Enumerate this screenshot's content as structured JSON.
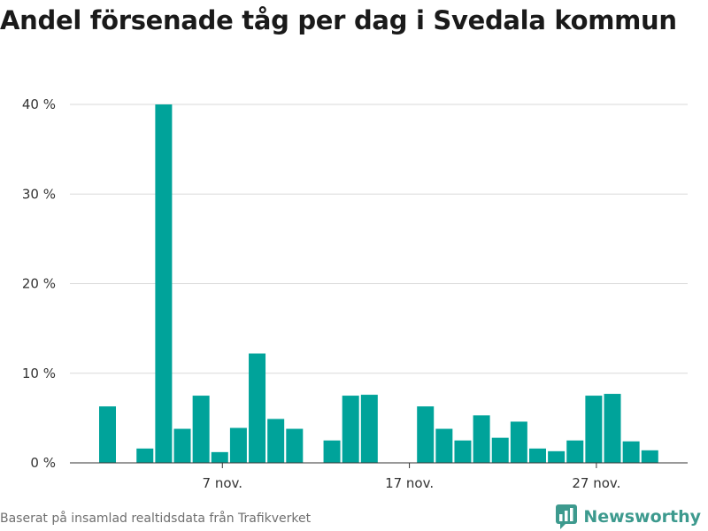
{
  "title": "Andel försenade tåg per dag i Svedala kommun",
  "footer": "Baserat på insamlad realtidsdata från Trafikverket",
  "brand": {
    "name": "Newsworthy",
    "icon": "newsworthy-logo-icon",
    "color": "#3d9a8e"
  },
  "chart_data": {
    "type": "bar",
    "title": "Andel försenade tåg per dag i Svedala kommun",
    "x": [
      "2019-11-01",
      "2019-11-02",
      "2019-11-03",
      "2019-11-04",
      "2019-11-05",
      "2019-11-06",
      "2019-11-07",
      "2019-11-08",
      "2019-11-09",
      "2019-11-10",
      "2019-11-11",
      "2019-11-12",
      "2019-11-13",
      "2019-11-14",
      "2019-11-15",
      "2019-11-16",
      "2019-11-17",
      "2019-11-18",
      "2019-11-19",
      "2019-11-20",
      "2019-11-21",
      "2019-11-22",
      "2019-11-23",
      "2019-11-24",
      "2019-11-25",
      "2019-11-26",
      "2019-11-27",
      "2019-11-28",
      "2019-11-29",
      "2019-11-30"
    ],
    "values": [
      6.3,
      null,
      1.6,
      40.0,
      3.8,
      7.5,
      1.2,
      3.9,
      12.2,
      4.9,
      3.8,
      null,
      2.5,
      7.5,
      7.6,
      null,
      null,
      6.3,
      3.8,
      2.5,
      5.3,
      2.8,
      4.6,
      1.6,
      1.3,
      2.5,
      7.5,
      7.7,
      2.4,
      1.4
    ],
    "ylim": [
      0,
      40
    ],
    "yticks": [
      0,
      10,
      20,
      30,
      40
    ],
    "ytick_labels": [
      "0 %",
      "10 %",
      "20 %",
      "30 %",
      "40 %"
    ],
    "xticks": [
      {
        "date": "2019-11-07",
        "label": "7 nov."
      },
      {
        "date": "2019-11-17",
        "label": "17 nov."
      },
      {
        "date": "2019-11-27",
        "label": "27 nov."
      }
    ],
    "grid": true,
    "bar_color": "#00a39a"
  }
}
